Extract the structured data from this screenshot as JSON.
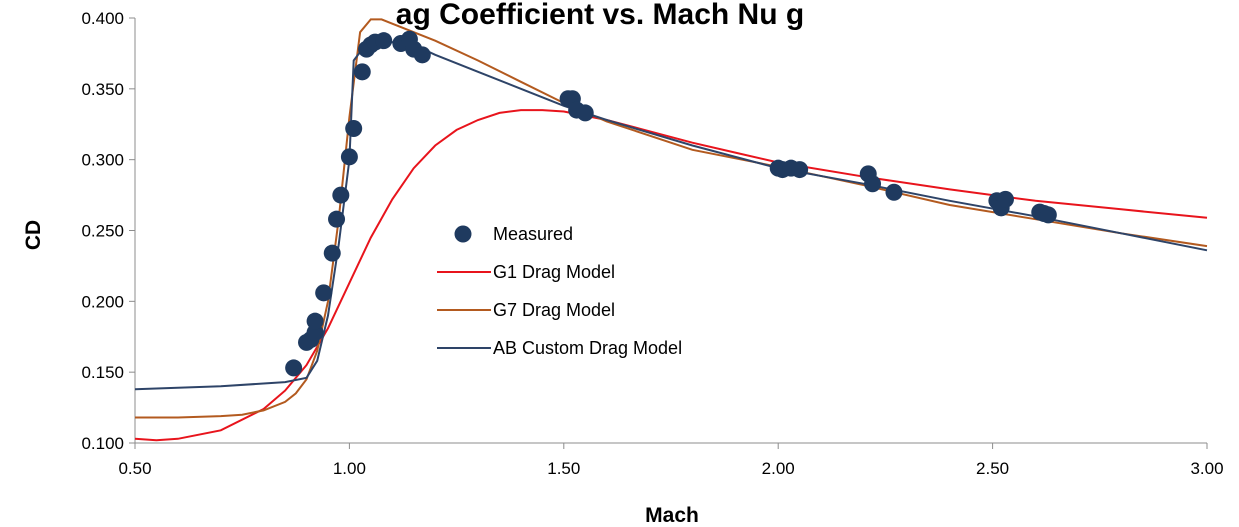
{
  "chart_data": {
    "type": "scatter",
    "title": "ag Coefficient vs. Mach Nu   g",
    "xlabel": "Mach",
    "ylabel": "CD",
    "xlim": [
      0.5,
      3.0
    ],
    "ylim": [
      0.1,
      0.4
    ],
    "x_ticks": [
      "0.50",
      "1.00",
      "1.50",
      "2.00",
      "2.50",
      "3.00"
    ],
    "y_ticks": [
      "0.100",
      "0.150",
      "0.200",
      "0.250",
      "0.300",
      "0.350",
      "0.400"
    ],
    "grid": false,
    "legend_position": "center",
    "series": [
      {
        "name": "Measured",
        "kind": "scatter",
        "color": "#1f3a5f",
        "points": [
          [
            0.87,
            0.153
          ],
          [
            0.9,
            0.171
          ],
          [
            0.91,
            0.173
          ],
          [
            0.92,
            0.178
          ],
          [
            0.92,
            0.186
          ],
          [
            0.94,
            0.206
          ],
          [
            0.96,
            0.234
          ],
          [
            0.97,
            0.258
          ],
          [
            0.98,
            0.275
          ],
          [
            1.0,
            0.302
          ],
          [
            1.01,
            0.322
          ],
          [
            1.03,
            0.362
          ],
          [
            1.04,
            0.378
          ],
          [
            1.05,
            0.381
          ],
          [
            1.06,
            0.383
          ],
          [
            1.08,
            0.384
          ],
          [
            1.12,
            0.382
          ],
          [
            1.14,
            0.385
          ],
          [
            1.15,
            0.378
          ],
          [
            1.17,
            0.374
          ],
          [
            1.51,
            0.343
          ],
          [
            1.52,
            0.343
          ],
          [
            1.53,
            0.335
          ],
          [
            1.55,
            0.333
          ],
          [
            2.0,
            0.294
          ],
          [
            2.01,
            0.293
          ],
          [
            2.03,
            0.294
          ],
          [
            2.05,
            0.293
          ],
          [
            2.21,
            0.29
          ],
          [
            2.22,
            0.283
          ],
          [
            2.27,
            0.277
          ],
          [
            2.51,
            0.271
          ],
          [
            2.52,
            0.266
          ],
          [
            2.53,
            0.272
          ],
          [
            2.61,
            0.263
          ],
          [
            2.62,
            0.262
          ],
          [
            2.63,
            0.261
          ]
        ]
      },
      {
        "name": "G1 Drag Model",
        "kind": "line",
        "color": "#e8141c",
        "points": [
          [
            0.5,
            0.103
          ],
          [
            0.55,
            0.102
          ],
          [
            0.6,
            0.103
          ],
          [
            0.7,
            0.109
          ],
          [
            0.8,
            0.124
          ],
          [
            0.85,
            0.137
          ],
          [
            0.9,
            0.155
          ],
          [
            0.95,
            0.181
          ],
          [
            1.0,
            0.213
          ],
          [
            1.05,
            0.245
          ],
          [
            1.1,
            0.272
          ],
          [
            1.15,
            0.294
          ],
          [
            1.2,
            0.31
          ],
          [
            1.25,
            0.321
          ],
          [
            1.3,
            0.328
          ],
          [
            1.35,
            0.333
          ],
          [
            1.4,
            0.335
          ],
          [
            1.45,
            0.335
          ],
          [
            1.5,
            0.334
          ],
          [
            1.6,
            0.328
          ],
          [
            1.7,
            0.32
          ],
          [
            1.8,
            0.312
          ],
          [
            1.9,
            0.305
          ],
          [
            2.0,
            0.298
          ],
          [
            2.2,
            0.288
          ],
          [
            2.4,
            0.279
          ],
          [
            2.6,
            0.271
          ],
          [
            2.8,
            0.265
          ],
          [
            3.0,
            0.259
          ]
        ]
      },
      {
        "name": "G7 Drag Model",
        "kind": "line",
        "color": "#b35a1f",
        "points": [
          [
            0.5,
            0.118
          ],
          [
            0.6,
            0.118
          ],
          [
            0.7,
            0.119
          ],
          [
            0.75,
            0.12
          ],
          [
            0.8,
            0.123
          ],
          [
            0.85,
            0.129
          ],
          [
            0.875,
            0.135
          ],
          [
            0.9,
            0.145
          ],
          [
            0.925,
            0.165
          ],
          [
            0.95,
            0.2
          ],
          [
            0.975,
            0.258
          ],
          [
            1.0,
            0.33
          ],
          [
            1.025,
            0.39
          ],
          [
            1.05,
            0.399
          ],
          [
            1.075,
            0.399
          ],
          [
            1.1,
            0.396
          ],
          [
            1.2,
            0.384
          ],
          [
            1.3,
            0.37
          ],
          [
            1.4,
            0.355
          ],
          [
            1.5,
            0.34
          ],
          [
            1.6,
            0.327
          ],
          [
            1.8,
            0.307
          ],
          [
            2.0,
            0.295
          ],
          [
            2.2,
            0.282
          ],
          [
            2.4,
            0.268
          ],
          [
            2.6,
            0.258
          ],
          [
            2.8,
            0.248
          ],
          [
            3.0,
            0.239
          ]
        ]
      },
      {
        "name": "AB Custom Drag Model",
        "kind": "line",
        "color": "#2e4468",
        "points": [
          [
            0.5,
            0.138
          ],
          [
            0.6,
            0.139
          ],
          [
            0.7,
            0.14
          ],
          [
            0.8,
            0.142
          ],
          [
            0.85,
            0.143
          ],
          [
            0.9,
            0.146
          ],
          [
            0.925,
            0.158
          ],
          [
            0.95,
            0.19
          ],
          [
            0.975,
            0.24
          ],
          [
            1.0,
            0.3
          ],
          [
            1.01,
            0.37
          ],
          [
            1.03,
            0.378
          ],
          [
            1.05,
            0.381
          ],
          [
            1.1,
            0.383
          ],
          [
            1.15,
            0.381
          ],
          [
            1.2,
            0.374
          ],
          [
            1.3,
            0.362
          ],
          [
            1.4,
            0.35
          ],
          [
            1.5,
            0.338
          ],
          [
            1.6,
            0.328
          ],
          [
            1.8,
            0.31
          ],
          [
            2.0,
            0.294
          ],
          [
            2.2,
            0.283
          ],
          [
            2.4,
            0.271
          ],
          [
            2.6,
            0.26
          ],
          [
            2.8,
            0.248
          ],
          [
            3.0,
            0.236
          ]
        ]
      }
    ]
  }
}
